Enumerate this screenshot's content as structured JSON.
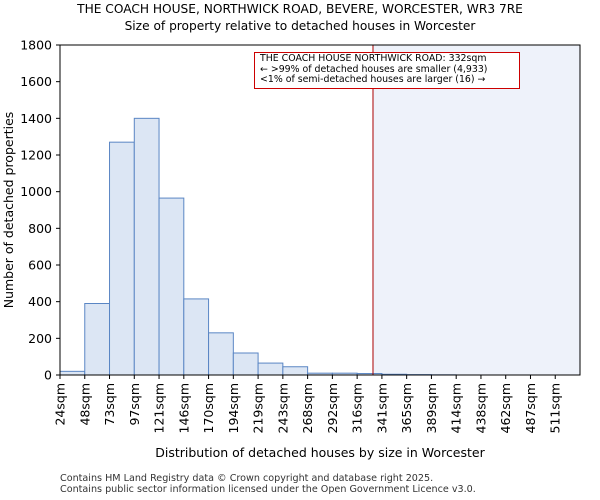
{
  "header": {
    "title": "THE COACH HOUSE, NORTHWICK ROAD, BEVERE, WORCESTER, WR3 7RE",
    "subtitle": "Size of property relative to detached houses in Worcester"
  },
  "annotation": {
    "line1": "THE COACH HOUSE NORTHWICK ROAD: 332sqm",
    "line2": "← >99% of detached houses are smaller (4,933)",
    "line3": "<1% of semi-detached houses are larger (16) →"
  },
  "footer": {
    "line1": "Contains HM Land Registry data © Crown copyright and database right 2025.",
    "line2": "Contains public sector information licensed under the Open Government Licence v3.0."
  },
  "colors": {
    "bar_fill": "#dce6f4",
    "bar_stroke": "#5a86c4",
    "marker": "#aa0000",
    "shade": "#eef2fa"
  },
  "chart_data": {
    "type": "bar",
    "xlabel": "Distribution of detached houses by size in Worcester",
    "ylabel": "Number of detached properties",
    "ylim": [
      0,
      1800
    ],
    "yticks": [
      0,
      200,
      400,
      600,
      800,
      1000,
      1200,
      1400,
      1600,
      1800
    ],
    "categories": [
      "24sqm",
      "48sqm",
      "73sqm",
      "97sqm",
      "121sqm",
      "146sqm",
      "170sqm",
      "194sqm",
      "219sqm",
      "243sqm",
      "268sqm",
      "292sqm",
      "316sqm",
      "341sqm",
      "365sqm",
      "389sqm",
      "414sqm",
      "438sqm",
      "462sqm",
      "487sqm",
      "511sqm"
    ],
    "values": [
      20,
      390,
      1270,
      1400,
      965,
      415,
      230,
      120,
      65,
      45,
      10,
      10,
      8,
      4,
      2,
      1,
      0,
      0,
      0,
      0,
      0
    ],
    "marker_value": 332,
    "shade_from": 332,
    "grid": false
  }
}
